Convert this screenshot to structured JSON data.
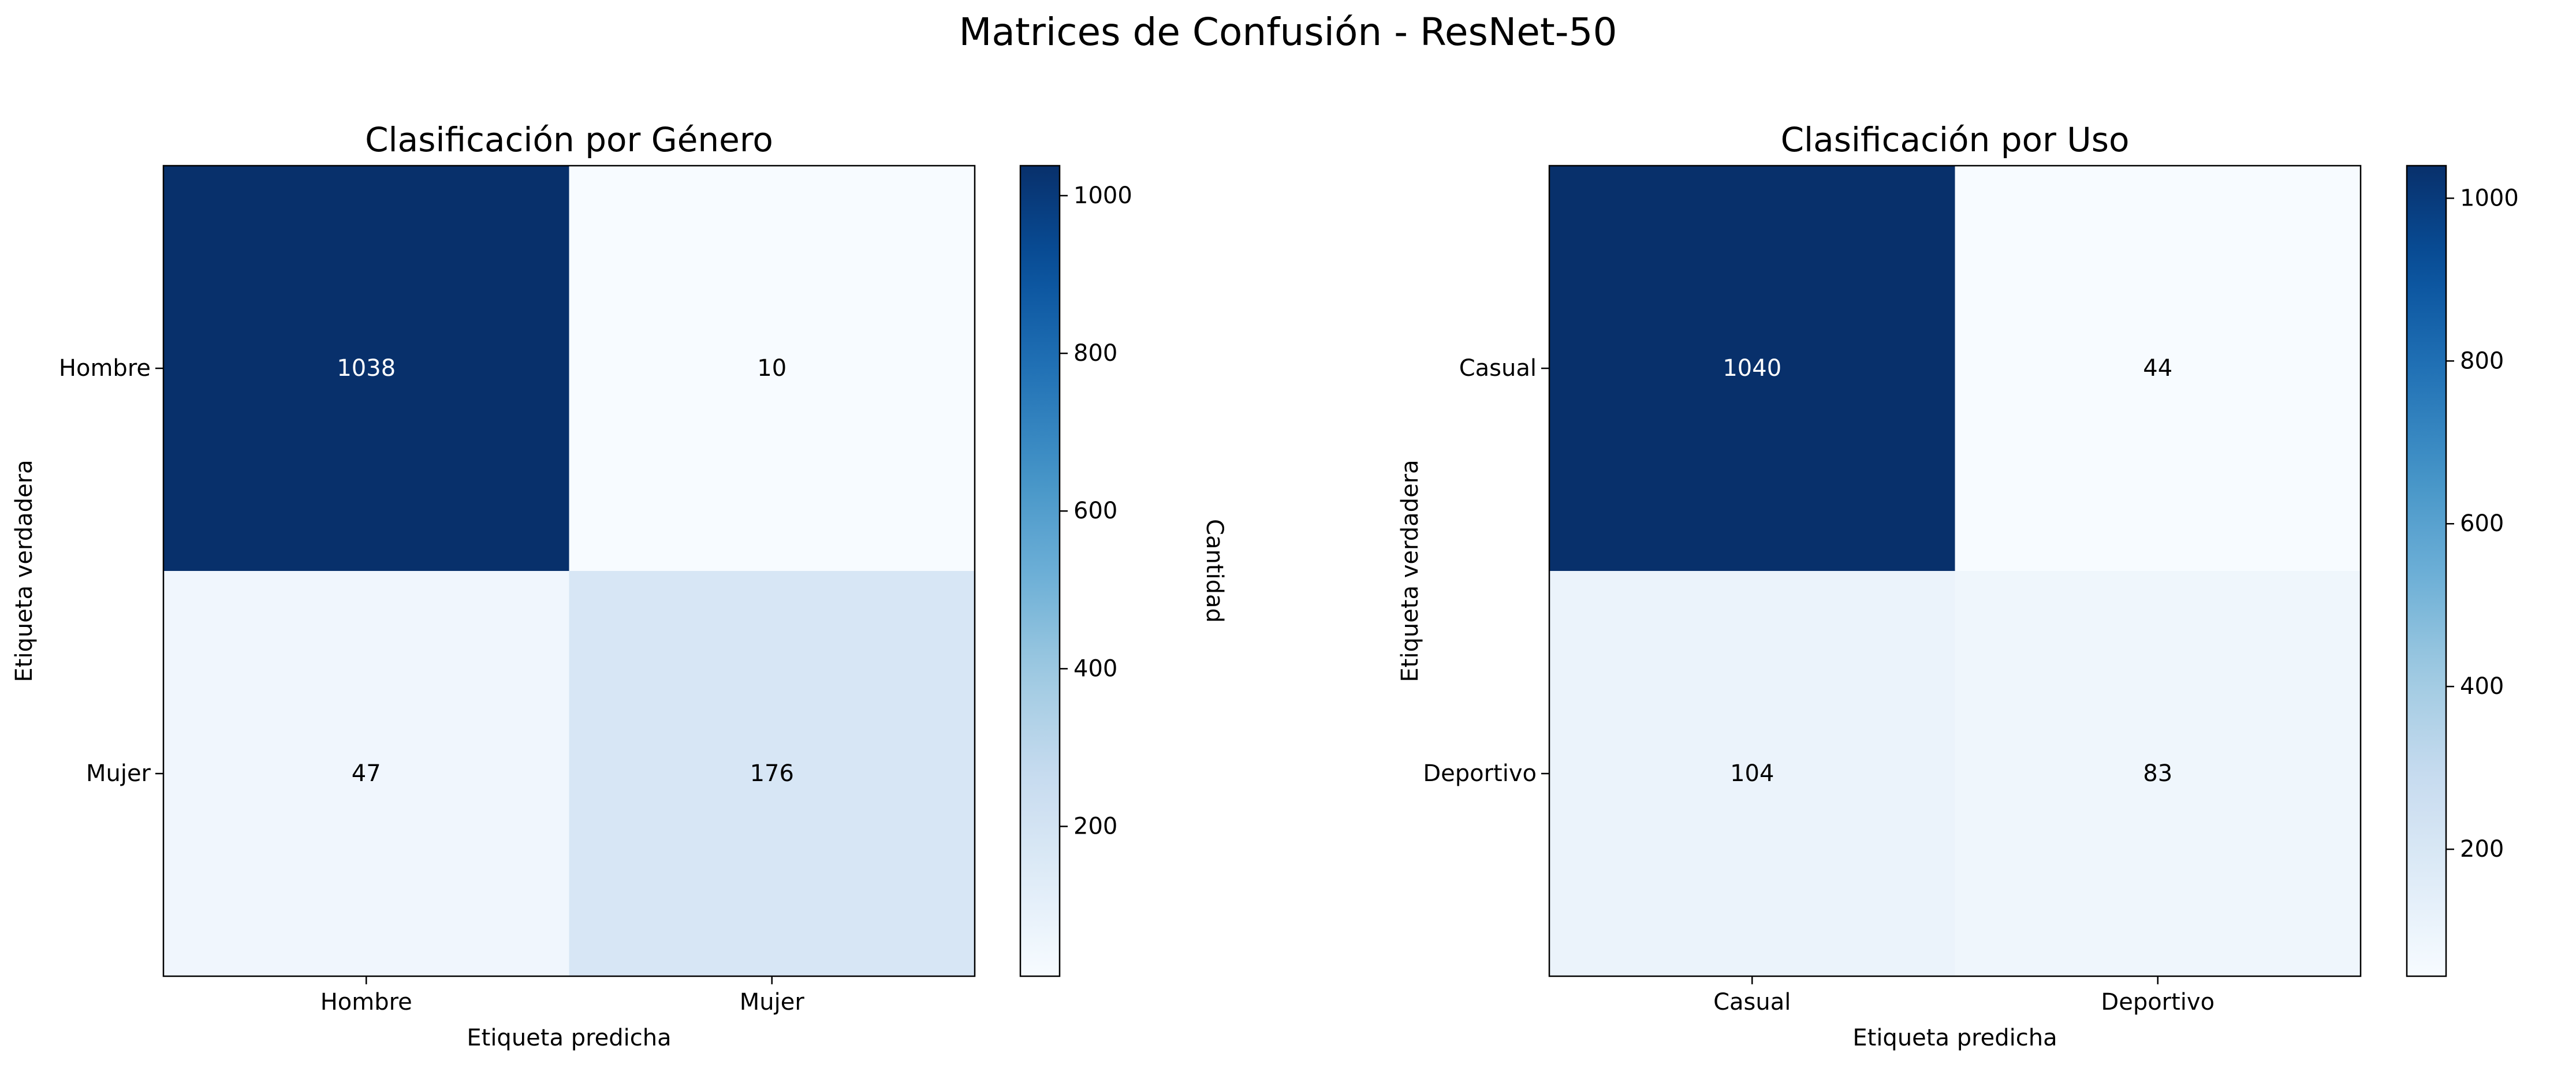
{
  "figure": {
    "suptitle": "Matrices de Confusión - ResNet-50"
  },
  "chart_data": [
    {
      "type": "heatmap",
      "title": "Clasificación por Género",
      "xlabel": "Etiqueta predicha",
      "ylabel": "Etiqueta verdadera",
      "x_categories": [
        "Hombre",
        "Mujer"
      ],
      "y_categories": [
        "Hombre",
        "Mujer"
      ],
      "values": [
        [
          1038,
          10
        ],
        [
          47,
          176
        ]
      ],
      "colormap": "Blues",
      "colorbar": {
        "label": "Cantidad",
        "min": 10,
        "max": 1038,
        "ticks": [
          200,
          400,
          600,
          800,
          1000
        ]
      },
      "grid": false
    },
    {
      "type": "heatmap",
      "title": "Clasificación por Uso",
      "xlabel": "Etiqueta predicha",
      "ylabel": "Etiqueta verdadera",
      "x_categories": [
        "Casual",
        "Deportivo"
      ],
      "y_categories": [
        "Casual",
        "Deportivo"
      ],
      "values": [
        [
          1040,
          44
        ],
        [
          104,
          83
        ]
      ],
      "colormap": "Blues",
      "colorbar": {
        "label": "Cantidad",
        "min": 44,
        "max": 1040,
        "ticks": [
          200,
          400,
          600,
          800,
          1000
        ]
      },
      "grid": false
    }
  ]
}
